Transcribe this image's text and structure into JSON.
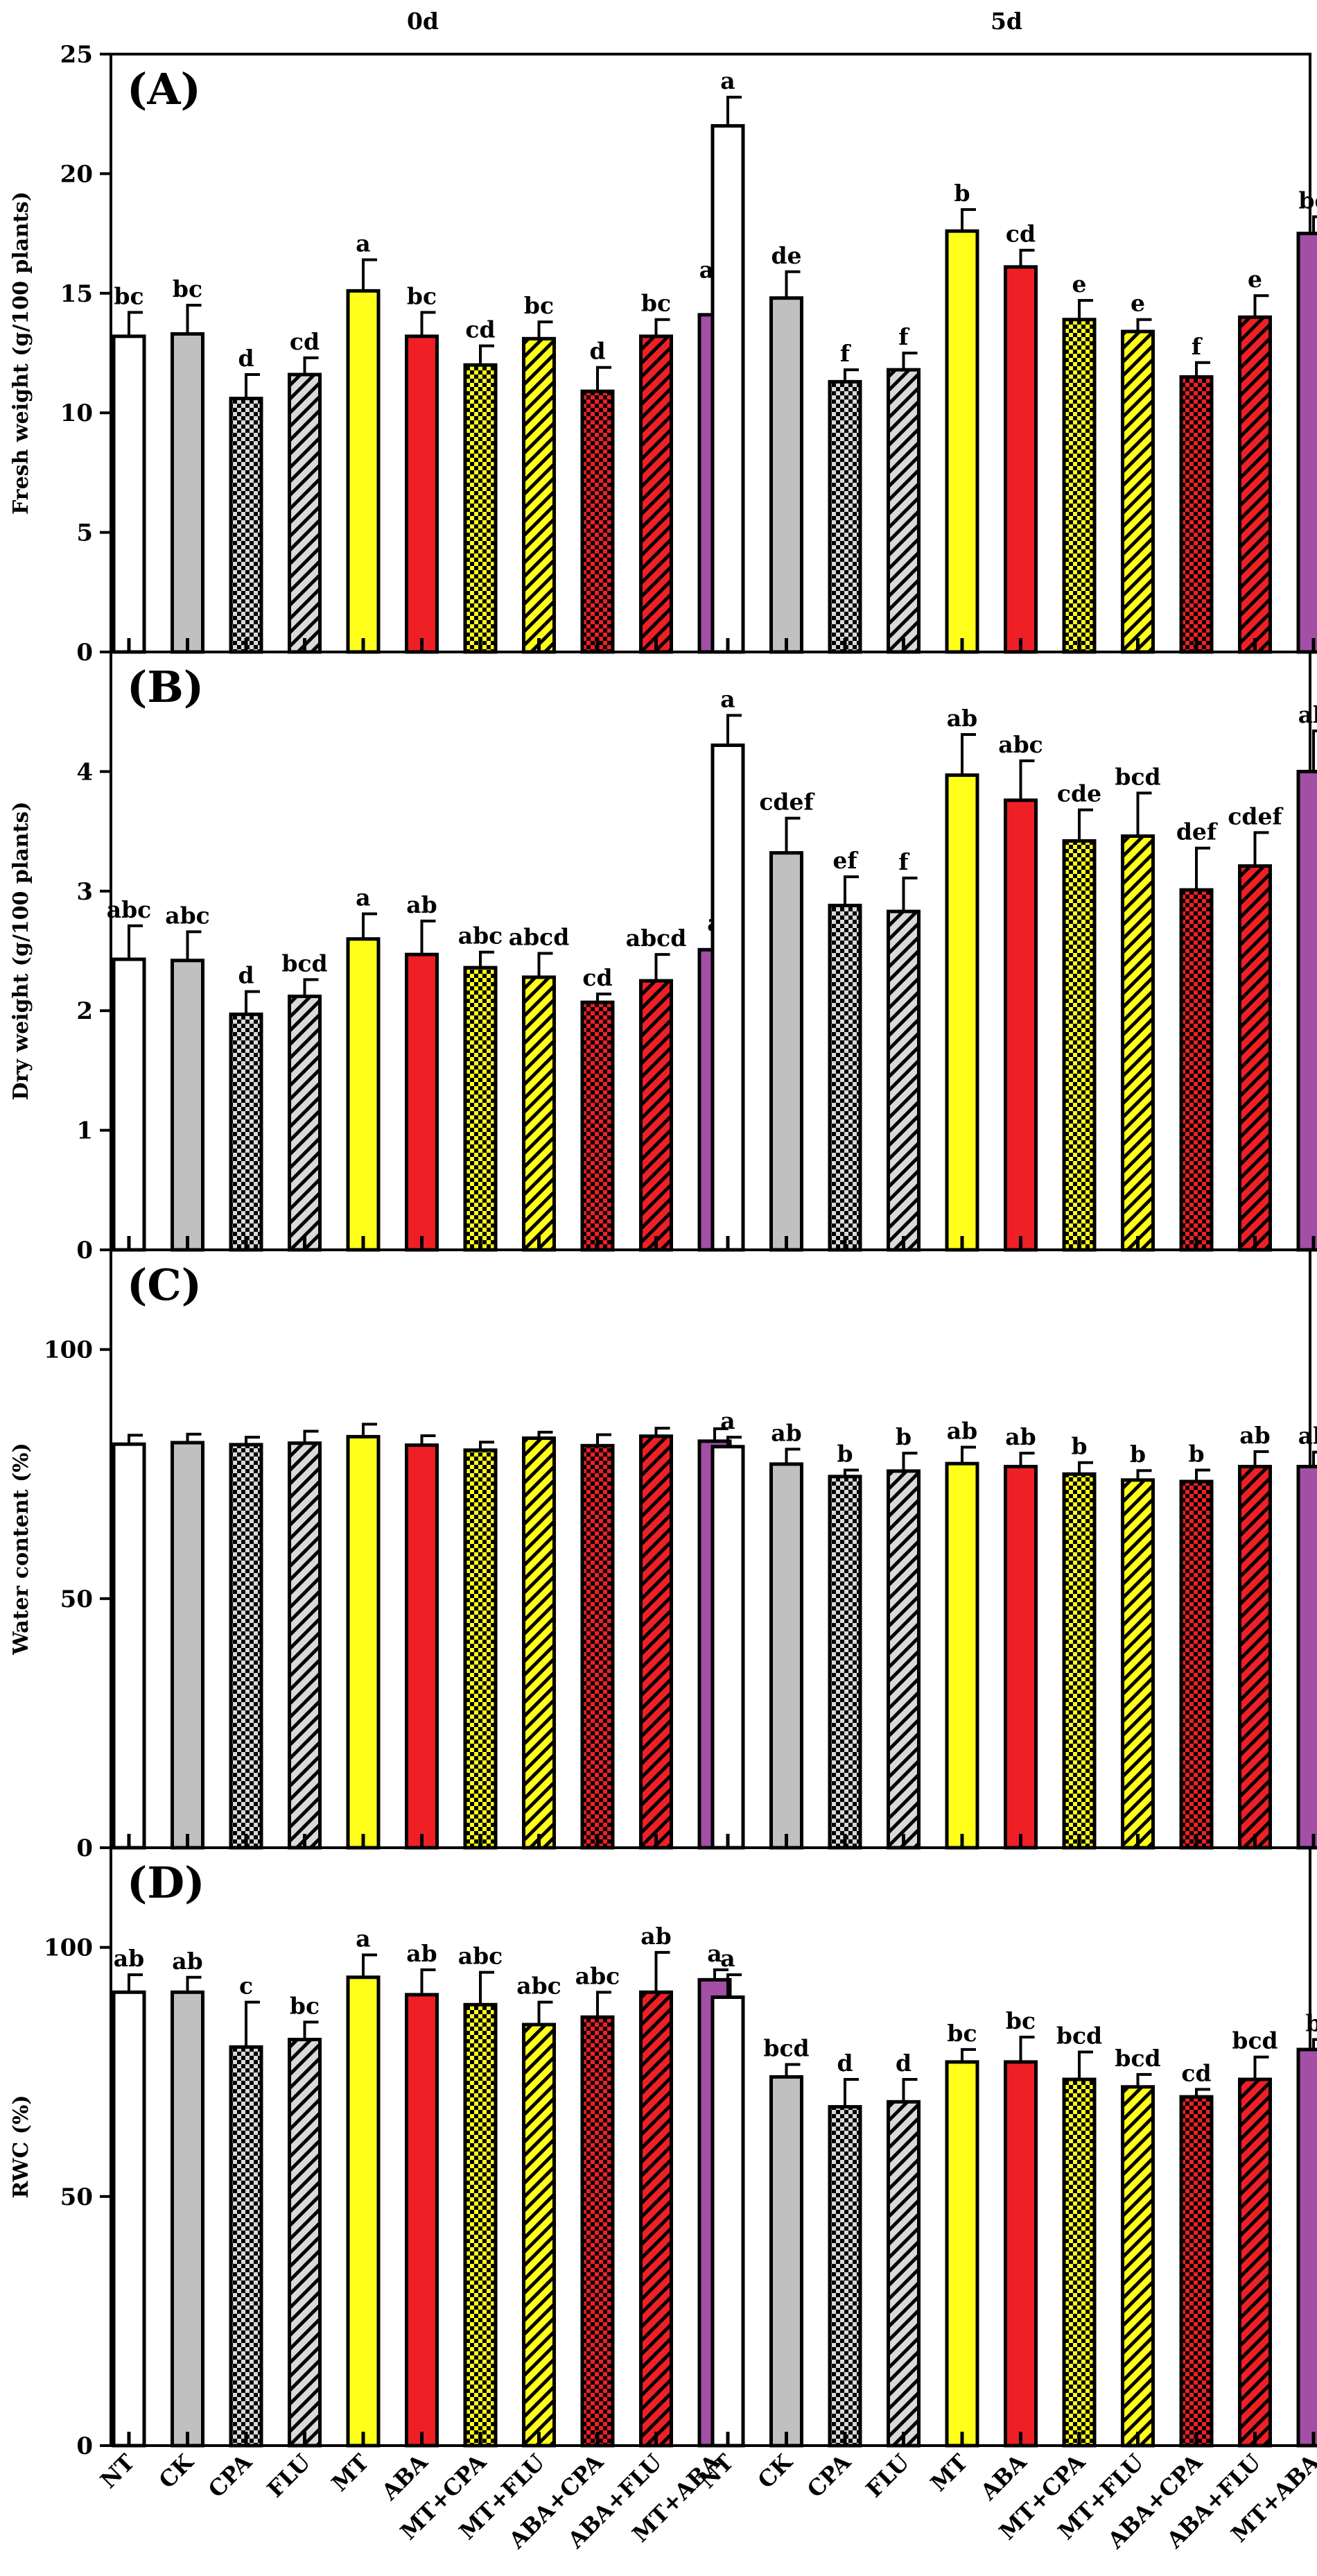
{
  "figure": {
    "group_labels": [
      "0d",
      "5d"
    ],
    "categories": [
      "NT",
      "CK",
      "CPA",
      "FLU",
      "MT",
      "ABA",
      "MT+CPA",
      "MT+FLU",
      "ABA+CPA",
      "ABA+FLU",
      "MT+ABA"
    ],
    "bar_styles": [
      {
        "fill": "#ffffff",
        "pattern": "none"
      },
      {
        "fill": "#c0c0c0",
        "pattern": "none"
      },
      {
        "fill": "#d9d9d9",
        "pattern": "checker",
        "ink": "#000000"
      },
      {
        "fill": "#d9d9d9",
        "pattern": "diag",
        "ink": "#000000"
      },
      {
        "fill": "#ffff1a",
        "pattern": "none"
      },
      {
        "fill": "#ee2025",
        "pattern": "none"
      },
      {
        "fill": "#ffff1a",
        "pattern": "checker",
        "ink": "#000000"
      },
      {
        "fill": "#ffff1a",
        "pattern": "diag",
        "ink": "#000000"
      },
      {
        "fill": "#ee2025",
        "pattern": "checker",
        "ink": "#000000"
      },
      {
        "fill": "#ee2025",
        "pattern": "diag",
        "ink": "#000000"
      },
      {
        "fill": "#a24fa5",
        "pattern": "none"
      }
    ]
  },
  "chart_data": [
    {
      "type": "bar",
      "panel": "(A)",
      "ylabel": "Fresh weight (g/100 plants)",
      "ylim": [
        0,
        25
      ],
      "yticks": [
        0,
        5,
        10,
        15,
        20,
        25
      ],
      "series": [
        {
          "name": "0d",
          "values": [
            13.2,
            13.3,
            10.6,
            11.6,
            15.1,
            13.2,
            12.0,
            13.1,
            10.9,
            13.2,
            14.1
          ],
          "errors": [
            1.0,
            1.2,
            1.0,
            0.7,
            1.3,
            1.0,
            0.8,
            0.7,
            1.0,
            0.7,
            1.2
          ],
          "letters": [
            "bc",
            "bc",
            "d",
            "cd",
            "a",
            "bc",
            "cd",
            "bc",
            "d",
            "bc",
            "ab"
          ]
        },
        {
          "name": "5d",
          "values": [
            22.0,
            14.8,
            11.3,
            11.8,
            17.6,
            16.1,
            13.9,
            13.4,
            11.5,
            14.0,
            17.5
          ],
          "errors": [
            1.2,
            1.1,
            0.5,
            0.7,
            0.9,
            0.7,
            0.8,
            0.5,
            0.6,
            0.9,
            0.7
          ],
          "letters": [
            "a",
            "de",
            "f",
            "f",
            "b",
            "cd",
            "e",
            "e",
            "f",
            "e",
            "bc"
          ]
        }
      ]
    },
    {
      "type": "bar",
      "panel": "(B)",
      "ylabel": "Dry weight (g/100 plants)",
      "ylim": [
        0,
        5
      ],
      "yticks": [
        0,
        1,
        2,
        3,
        4
      ],
      "series": [
        {
          "name": "0d",
          "values": [
            2.43,
            2.42,
            1.97,
            2.12,
            2.6,
            2.47,
            2.36,
            2.28,
            2.07,
            2.25,
            2.51
          ],
          "errors": [
            0.28,
            0.24,
            0.19,
            0.14,
            0.21,
            0.28,
            0.13,
            0.2,
            0.07,
            0.22,
            0.09
          ],
          "letters": [
            "abc",
            "abc",
            "d",
            "bcd",
            "a",
            "ab",
            "abc",
            "abcd",
            "cd",
            "abcd",
            "a"
          ]
        },
        {
          "name": "5d",
          "values": [
            4.22,
            3.32,
            2.88,
            2.83,
            3.97,
            3.76,
            3.42,
            3.46,
            3.01,
            3.21,
            4.0
          ],
          "errors": [
            0.25,
            0.29,
            0.24,
            0.28,
            0.34,
            0.33,
            0.26,
            0.36,
            0.35,
            0.28,
            0.34
          ],
          "letters": [
            "a",
            "cdef",
            "ef",
            "f",
            "ab",
            "abc",
            "cde",
            "bcd",
            "def",
            "cdef",
            "ab"
          ]
        }
      ]
    },
    {
      "type": "bar",
      "panel": "(C)",
      "ylabel": "Water content (%)",
      "ylim": [
        0,
        120
      ],
      "yticks": [
        0,
        50,
        100
      ],
      "series": [
        {
          "name": "0d",
          "values": [
            81.0,
            81.3,
            80.9,
            81.2,
            82.5,
            80.8,
            79.8,
            82.2,
            80.7,
            82.6,
            81.6
          ],
          "errors": [
            1.8,
            1.7,
            1.5,
            2.4,
            2.5,
            1.9,
            1.6,
            1.2,
            2.2,
            1.6,
            2.5
          ],
          "letters": [
            "",
            "",
            "",
            "",
            "",
            "",
            "",
            "",
            "",
            "",
            ""
          ]
        },
        {
          "name": "5d",
          "values": [
            80.5,
            77.0,
            74.5,
            75.6,
            77.1,
            76.5,
            75.0,
            73.8,
            73.5,
            76.5,
            76.5
          ],
          "errors": [
            1.9,
            3.0,
            1.3,
            3.6,
            3.3,
            2.7,
            2.3,
            1.9,
            2.3,
            3.0,
            2.9
          ],
          "letters": [
            "a",
            "ab",
            "b",
            "b",
            "ab",
            "ab",
            "b",
            "b",
            "b",
            "ab",
            "ab"
          ]
        }
      ]
    },
    {
      "type": "bar",
      "panel": "(D)",
      "ylabel": "RWC (%)",
      "ylim": [
        0,
        120
      ],
      "yticks": [
        0,
        50,
        100
      ],
      "series": [
        {
          "name": "0d",
          "values": [
            91.0,
            91.0,
            80.0,
            81.5,
            94.0,
            90.5,
            88.5,
            84.5,
            86.0,
            91.0,
            93.5
          ],
          "errors": [
            3.5,
            3.0,
            9.0,
            3.5,
            4.5,
            5.0,
            6.5,
            4.5,
            5.0,
            8.0,
            2.0
          ],
          "letters": [
            "ab",
            "ab",
            "c",
            "bc",
            "a",
            "ab",
            "abc",
            "abc",
            "abc",
            "ab",
            "a"
          ]
        },
        {
          "name": "5d",
          "values": [
            90.0,
            74.0,
            68.0,
            69.0,
            77.0,
            77.0,
            73.5,
            72.0,
            70.0,
            73.5,
            79.5
          ],
          "errors": [
            4.5,
            2.5,
            5.5,
            4.5,
            2.5,
            5.0,
            5.5,
            2.5,
            1.5,
            4.5,
            2.0
          ],
          "letters": [
            "a",
            "bcd",
            "d",
            "d",
            "bc",
            "bc",
            "bcd",
            "bcd",
            "cd",
            "bcd",
            "b"
          ]
        }
      ]
    }
  ]
}
